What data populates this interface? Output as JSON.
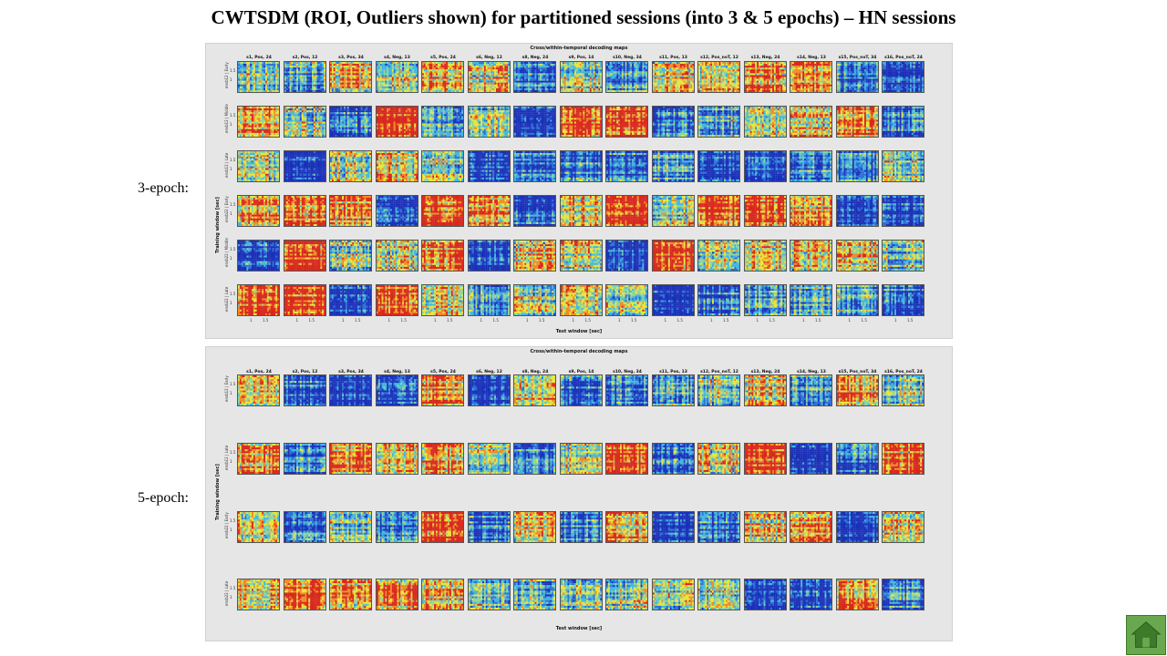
{
  "slide": {
    "title": "CWTSDM  (ROI, Outliers shown) for partitioned sessions (into 3 & 5 epochs) – HN sessions"
  },
  "labels": {
    "epoch3": "3-epoch:",
    "epoch5": "5-epoch:"
  },
  "figures": [
    {
      "title": "Cross/within-temporal decoding maps",
      "ylabel": "Training window [sec]",
      "xlabel": "Test window [sec]",
      "columns": [
        "s1, Pos, 24",
        "s2, Pos, 12",
        "s3, Pos, 34",
        "s4, Neg, 13",
        "s5, Pos, 24",
        "s6, Neg, 12",
        "s8, Neg, 24",
        "s9, Pos, 14",
        "s10, Neg, 34",
        "s11, Pos, 13",
        "s12, Pos_noT, 12",
        "s13, Neg, 24",
        "s14, Neg, 13",
        "s15, Pos_noT, 34",
        "s16, Pos_noT, 24"
      ],
      "rows": [
        "ensb12 | Early",
        "ensb12 | Middle",
        "ensb12 | Late",
        "ensb22 | Early",
        "ensb22 | Middle",
        "ensb22 | Late"
      ],
      "yticks": [
        "1.5",
        "1"
      ],
      "xticks": [
        "1",
        "1.5"
      ]
    },
    {
      "title": "Cross/within-temporal decoding maps",
      "ylabel": "Training window [sec]",
      "xlabel": "Test window [sec]",
      "columns": [
        "s1, Pos, 24",
        "s2, Pos, 12",
        "s3, Pos, 34",
        "s4, Neg, 13",
        "s5, Pos, 24",
        "s6, Neg, 12",
        "s8, Neg, 24",
        "s9, Pos, 14",
        "s10, Neg, 34",
        "s11, Pos, 13",
        "s12, Pos_noT, 12",
        "s13, Neg, 24",
        "s14, Neg, 13",
        "s15, Pos_noT, 34",
        "s16, Pos_noT, 24"
      ],
      "rows": [
        "ensb12 | Early",
        "ensb12 | Late",
        "ensb22 | Early",
        "ensb22 | Late"
      ],
      "yticks": [
        "1.5",
        "1"
      ],
      "xticks": []
    }
  ],
  "colormap": [
    "#1a2fb8",
    "#2b6fd6",
    "#3fb6e0",
    "#8fd39a",
    "#e8e63a",
    "#f08a24",
    "#d8261c"
  ],
  "home_button": {
    "icon": "home-icon",
    "color": "#6aa84f"
  }
}
